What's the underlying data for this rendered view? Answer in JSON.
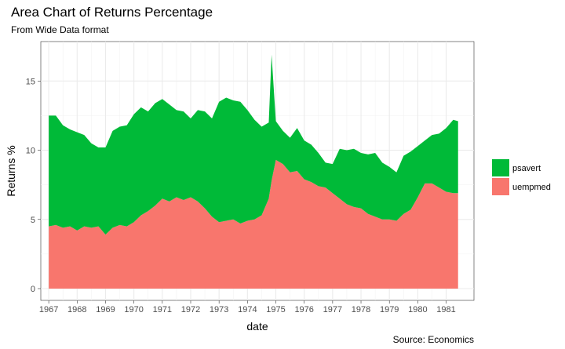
{
  "chart_data": {
    "type": "area",
    "stacked": true,
    "title": "Area Chart of Returns Percentage",
    "subtitle": "From Wide Data format",
    "xlabel": "date",
    "ylabel": "Returns %",
    "caption": "Source: Economics",
    "xlim": [
      1966.72,
      1981.98
    ],
    "ylim": [
      -0.85,
      17.85
    ],
    "x_ticks": [
      1967,
      1968,
      1969,
      1970,
      1971,
      1972,
      1973,
      1974,
      1975,
      1976,
      1977,
      1978,
      1979,
      1980,
      1981
    ],
    "y_ticks": [
      0,
      5,
      10,
      15
    ],
    "grid": true,
    "legend_position": "right",
    "x": [
      1967.0,
      1967.25,
      1967.5,
      1967.75,
      1968.0,
      1968.25,
      1968.5,
      1968.75,
      1969.0,
      1969.25,
      1969.5,
      1969.75,
      1970.0,
      1970.25,
      1970.5,
      1970.75,
      1971.0,
      1971.25,
      1971.5,
      1971.75,
      1972.0,
      1972.25,
      1972.5,
      1972.75,
      1973.0,
      1973.25,
      1973.5,
      1973.75,
      1974.0,
      1974.25,
      1974.5,
      1974.75,
      1974.85,
      1975.0,
      1975.25,
      1975.5,
      1975.75,
      1976.0,
      1976.25,
      1976.5,
      1976.75,
      1977.0,
      1977.25,
      1977.5,
      1977.75,
      1978.0,
      1978.25,
      1978.5,
      1978.75,
      1979.0,
      1979.25,
      1979.5,
      1979.75,
      1980.0,
      1980.25,
      1980.5,
      1980.75,
      1981.0,
      1981.25,
      1981.42
    ],
    "series": [
      {
        "name": "uempmed",
        "color": "#F8766D",
        "values": [
          4.5,
          4.6,
          4.4,
          4.5,
          4.2,
          4.5,
          4.4,
          4.5,
          3.9,
          4.4,
          4.6,
          4.5,
          4.8,
          5.3,
          5.6,
          6.0,
          6.5,
          6.3,
          6.6,
          6.4,
          6.6,
          6.3,
          5.8,
          5.2,
          4.8,
          4.9,
          5.0,
          4.7,
          4.9,
          5.0,
          5.3,
          6.5,
          7.8,
          9.3,
          9.0,
          8.4,
          8.5,
          7.9,
          7.7,
          7.4,
          7.3,
          6.9,
          6.5,
          6.1,
          5.9,
          5.8,
          5.4,
          5.2,
          5.0,
          5.0,
          4.9,
          5.4,
          5.7,
          6.6,
          7.6,
          7.6,
          7.3,
          7.0,
          6.9,
          6.9
        ]
      },
      {
        "name": "psavert",
        "color": "#00BA38",
        "values": [
          8.0,
          7.9,
          7.4,
          7.0,
          7.1,
          6.6,
          6.1,
          5.7,
          6.3,
          7.0,
          7.1,
          7.3,
          7.8,
          7.8,
          7.2,
          7.4,
          7.2,
          7.0,
          6.3,
          6.4,
          5.7,
          6.6,
          7.0,
          7.1,
          8.7,
          8.9,
          8.6,
          8.8,
          8.0,
          7.2,
          6.4,
          5.5,
          9.1,
          2.8,
          2.4,
          2.5,
          3.1,
          2.8,
          2.7,
          2.4,
          1.8,
          2.1,
          3.6,
          3.9,
          4.2,
          4.0,
          4.3,
          4.6,
          4.1,
          3.8,
          3.5,
          4.2,
          4.2,
          3.7,
          3.1,
          3.5,
          3.9,
          4.6,
          5.3,
          5.2
        ]
      }
    ]
  }
}
